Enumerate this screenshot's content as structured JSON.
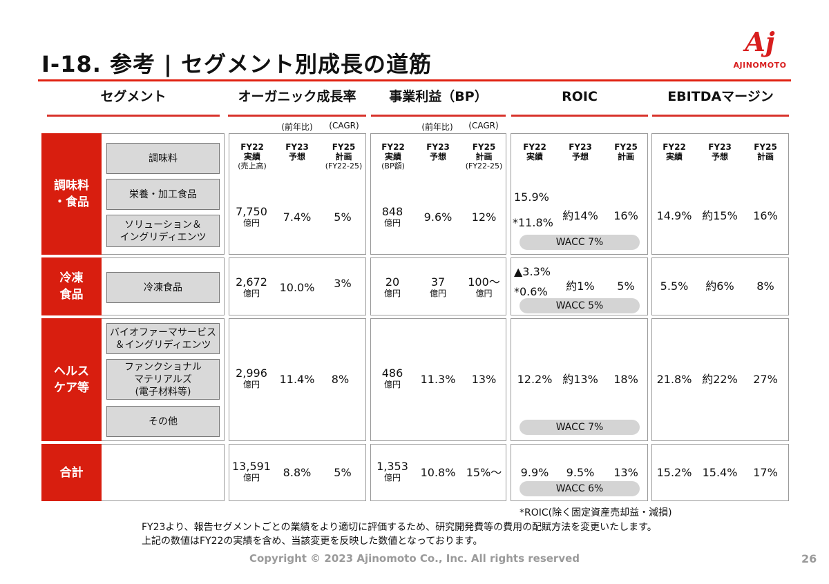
{
  "title": "Ⅰ-18. 参考 | セグメント別成長の道筋",
  "logo": {
    "mark": "Aj",
    "text": "AJINOMOTO"
  },
  "headers": {
    "segment": "セグメント",
    "organic": "オーガニック成長率",
    "bp": "事業利益（BP）",
    "roic": "ROIC",
    "ebitda": "EBITDAマージン"
  },
  "subheaders": {
    "organic_yoy": "(前年比)",
    "organic_cagr": "(CAGR)",
    "bp_yoy": "(前年比)",
    "bp_cagr": "(CAGR)"
  },
  "colheads": {
    "organic": [
      {
        "l1": "FY22",
        "l2": "実績",
        "l3": "(売上高)"
      },
      {
        "l1": "FY23",
        "l2": "予想",
        "l3": ""
      },
      {
        "l1": "FY25",
        "l2": "計画",
        "l3": "(FY22-25)"
      }
    ],
    "bp": [
      {
        "l1": "FY22",
        "l2": "実績",
        "l3": "(BP額)"
      },
      {
        "l1": "FY23",
        "l2": "予想",
        "l3": ""
      },
      {
        "l1": "FY25",
        "l2": "計画",
        "l3": "(FY22-25)"
      }
    ],
    "roic": [
      {
        "l1": "FY22",
        "l2": "実績"
      },
      {
        "l1": "FY23",
        "l2": "予想"
      },
      {
        "l1": "FY25",
        "l2": "計画"
      }
    ],
    "ebitda": [
      {
        "l1": "FY22",
        "l2": "実績"
      },
      {
        "l1": "FY23",
        "l2": "予想"
      },
      {
        "l1": "FY25",
        "l2": "計画"
      }
    ]
  },
  "segments": [
    {
      "name": "調味料\n・食品",
      "subs": [
        "調味料",
        "栄養・加工食品",
        "ソリューション＆\nイングリディエンツ"
      ],
      "organic": {
        "fy22": "7,750",
        "unit": "億円",
        "fy23": "7.4%",
        "fy25": "5%"
      },
      "bp": {
        "fy22": "848",
        "unit": "億円",
        "fy23": "9.6%",
        "fy25": "12%"
      },
      "roic": {
        "fy22": "15.9%",
        "fy22b": "*11.8%",
        "fy23": "約14%",
        "fy25": "16%",
        "wacc": "WACC 7%"
      },
      "ebitda": {
        "fy22": "14.9%",
        "fy23": "約15%",
        "fy25": "16%"
      }
    },
    {
      "name": "冷凍\n食品",
      "subs": [
        "冷凍食品"
      ],
      "organic": {
        "fy22": "2,672",
        "unit": "億円",
        "fy23": "10.0%",
        "fy25": "3%"
      },
      "bp": {
        "fy22": "20",
        "unit": "億円",
        "fy23": "37",
        "fy23unit": "億円",
        "fy25": "100～",
        "fy25unit": "億円"
      },
      "roic": {
        "fy22": "▲3.3%",
        "fy22b": "*0.6%",
        "fy23": "約1%",
        "fy25": "5%",
        "wacc": "WACC 5%"
      },
      "ebitda": {
        "fy22": "5.5%",
        "fy23": "約6%",
        "fy25": "8%"
      }
    },
    {
      "name": "ヘルス\nケア等",
      "subs": [
        "バイオファーマサービス\n＆イングリディエンツ",
        "ファンクショナル\nマテリアルズ\n(電子材料等)",
        "その他"
      ],
      "organic": {
        "fy22": "2,996",
        "unit": "億円",
        "fy23": "11.4%",
        "fy25": "8%"
      },
      "bp": {
        "fy22": "486",
        "unit": "億円",
        "fy23": "11.3%",
        "fy25": "13%"
      },
      "roic": {
        "fy22": "12.2%",
        "fy23": "約13%",
        "fy25": "18%",
        "wacc": "WACC 7%"
      },
      "ebitda": {
        "fy22": "21.8%",
        "fy23": "約22%",
        "fy25": "27%"
      }
    },
    {
      "name": "合計",
      "subs": [],
      "organic": {
        "fy22": "13,591",
        "unit": "億円",
        "fy23": "8.8%",
        "fy25": "5%"
      },
      "bp": {
        "fy22": "1,353",
        "unit": "億円",
        "fy23": "10.8%",
        "fy25": "15%～"
      },
      "roic": {
        "fy22": "9.9%",
        "fy23": "9.5%",
        "fy25": "13%",
        "wacc": "WACC 6%"
      },
      "ebitda": {
        "fy22": "15.2%",
        "fy23": "15.4%",
        "fy25": "17%"
      }
    }
  ],
  "notes": {
    "roic_note": "*ROIC(除く固定資産売却益・減損)",
    "line1": "FY23より、報告セグメントごとの業績をより適切に評価するため、研究開発費等の費用の配賦方法を変更いたします。",
    "line2": "上記の数値はFY22の実績を含め、当該変更を反映した数値となっております。"
  },
  "footer": "Copyright © 2023 Ajinomoto Co., Inc. All rights reserved",
  "page_number": "26"
}
